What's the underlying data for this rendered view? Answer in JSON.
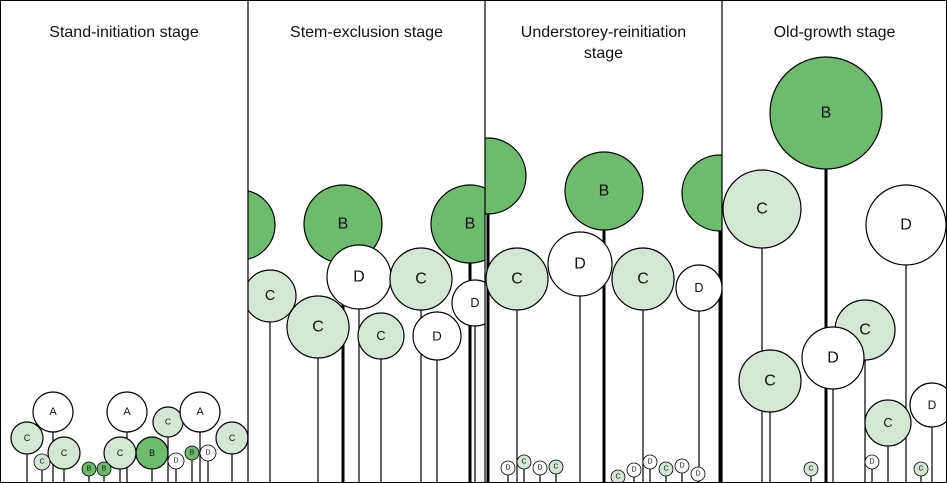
{
  "panels": [
    {
      "title": "Stand-initiation stage",
      "trees": [
        "A",
        "A",
        "C",
        "A",
        "C",
        "C",
        "C",
        "B",
        "C",
        "C",
        "B",
        "B",
        "D",
        "B",
        "D"
      ]
    },
    {
      "title": "Stem-exclusion stage",
      "trees": [
        "B",
        "B",
        "C",
        "D",
        "C",
        "D",
        "C",
        "C",
        "D"
      ]
    },
    {
      "title": "Understorey-reinitiation stage",
      "trees": [
        "B",
        "C",
        "D",
        "C",
        "D",
        "D",
        "C",
        "D",
        "C",
        "C",
        "D",
        "D",
        "C",
        "D",
        "D"
      ]
    },
    {
      "title": "Old-growth stage",
      "trees": [
        "B",
        "C",
        "D",
        "C",
        "D",
        "C",
        "D",
        "C",
        "C",
        "D",
        "C"
      ]
    }
  ]
}
